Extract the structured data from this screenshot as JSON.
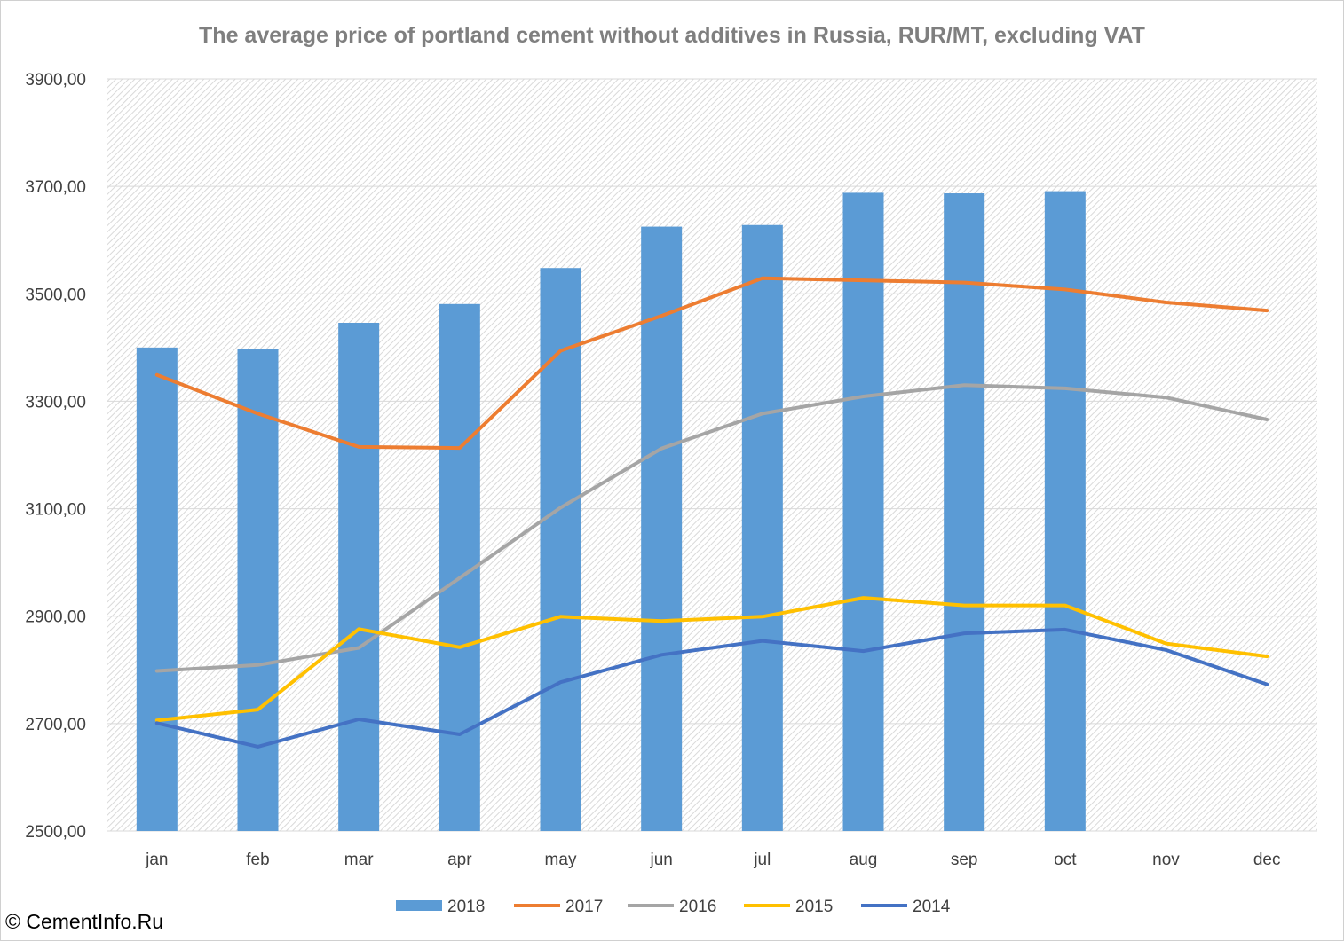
{
  "chart_data": {
    "type": "bar+line",
    "title": "The average price of portland cement without additives in Russia, RUR/MT,  excluding VAT",
    "categories": [
      "jan",
      "feb",
      "mar",
      "apr",
      "may",
      "jun",
      "jul",
      "aug",
      "sep",
      "oct",
      "nov",
      "dec"
    ],
    "y_ticks": [
      "2500,00",
      "2700,00",
      "2900,00",
      "3100,00",
      "3300,00",
      "3500,00",
      "3700,00",
      "3900,00"
    ],
    "ylim": [
      2500,
      3900
    ],
    "grid": true,
    "legend_position": "bottom",
    "series": [
      {
        "name": "2018",
        "kind": "bar",
        "color": "#5b9bd5",
        "values": [
          3400,
          3398,
          3446,
          3481,
          3548,
          3625,
          3628,
          3688,
          3687,
          3691,
          null,
          null
        ]
      },
      {
        "name": "2017",
        "kind": "line",
        "color": "#ed7d31",
        "values": [
          3349,
          3277,
          3215,
          3213,
          3394,
          3459,
          3529,
          3525,
          3521,
          3508,
          3484,
          3469
        ]
      },
      {
        "name": "2016",
        "kind": "line",
        "color": "#a5a5a5",
        "values": [
          2798,
          2809,
          2841,
          2971,
          3102,
          3212,
          3277,
          3309,
          3330,
          3324,
          3307,
          3266
        ]
      },
      {
        "name": "2015",
        "kind": "line",
        "color": "#ffc000",
        "values": [
          2706,
          2726,
          2876,
          2842,
          2899,
          2891,
          2899,
          2934,
          2920,
          2920,
          2849,
          2825
        ]
      },
      {
        "name": "2014",
        "kind": "line",
        "color": "#4472c4",
        "values": [
          2701,
          2657,
          2708,
          2680,
          2777,
          2828,
          2854,
          2835,
          2868,
          2875,
          2837,
          2773
        ]
      }
    ]
  },
  "footer": {
    "copyright": "© CementInfo.Ru"
  }
}
